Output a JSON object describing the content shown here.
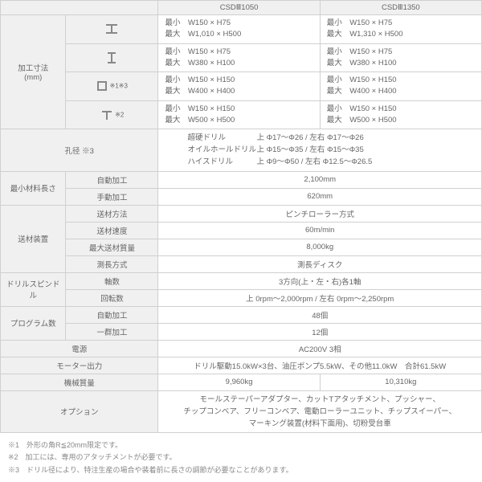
{
  "colors": {
    "border": "#d0d0d0",
    "headbg": "#f0f0f0",
    "text": "#666",
    "note": "#888"
  },
  "header": {
    "model_a": "CSDⅢ1050",
    "model_b": "CSDⅢ1350"
  },
  "dims": {
    "label": "加工寸法\n(mm)",
    "rows": [
      {
        "icon": "H",
        "a_min": "W150 × H75",
        "a_max": "W1,010 × H500",
        "b_min": "W150 × H75",
        "b_max": "W1,310 × H500"
      },
      {
        "icon": "I",
        "a_min": "W150 × H75",
        "a_max": "W380 × H100",
        "b_min": "W150 × H75",
        "b_max": "W380 × H100"
      },
      {
        "icon": "BOX",
        "note": "※1※3",
        "a_min": "W150 × H150",
        "a_max": "W400 × H400",
        "b_min": "W150 × H150",
        "b_max": "W400 × H400"
      },
      {
        "icon": "T",
        "note": "※2",
        "a_min": "W150 × H150",
        "a_max": "W500 × H500",
        "b_min": "W150 × H150",
        "b_max": "W500 × H500"
      }
    ],
    "minlabel": "最小",
    "maxlabel": "最大"
  },
  "hole": {
    "label": "孔径 ※3",
    "lines": [
      {
        "sub": "超硬ドリル",
        "val": "上 Φ17～Φ26 / 左右 Φ17～Φ26"
      },
      {
        "sub": "オイルホールドリル",
        "val": "上 Φ15～Φ35 / 左右 Φ15～Φ35"
      },
      {
        "sub": "ハイスドリル",
        "val": "上 Φ9～Φ50 / 左右 Φ12.5～Φ26.5"
      }
    ]
  },
  "rows": [
    {
      "group": "最小材料長さ",
      "sub": "自動加工",
      "val": "2,100mm"
    },
    {
      "group": "",
      "sub": "手動加工",
      "val": "620mm"
    },
    {
      "group": "送材装置",
      "sub": "送材方法",
      "val": "ピンチローラー方式"
    },
    {
      "group": "",
      "sub": "送材速度",
      "val": "60m/min"
    },
    {
      "group": "",
      "sub": "最大送材質量",
      "val": "8,000kg"
    },
    {
      "group": "",
      "sub": "測長方式",
      "val": "測長ディスク"
    },
    {
      "group": "ドリルスピンドル",
      "sub": "軸数",
      "val": "3方向(上・左・右)各1軸"
    },
    {
      "group": "",
      "sub": "回転数",
      "val": "上 0rpm～2,000rpm / 左右 0rpm～2,250rpm"
    },
    {
      "group": "プログラム数",
      "sub": "自動加工",
      "val": "48個"
    },
    {
      "group": "",
      "sub": "一群加工",
      "val": "12個"
    }
  ],
  "power": {
    "label": "電源",
    "val": "AC200V 3相"
  },
  "motor": {
    "label": "モーター出力",
    "val": "ドリル駆動15.0kW×3台、油圧ポンプ5.5kW、その他11.0kW　合計61.5kW"
  },
  "mass": {
    "label": "機械質量",
    "a": "9,960kg",
    "b": "10,310kg"
  },
  "option": {
    "label": "オプション",
    "val": "モールステーパーアダプター、カットTアタッチメント、プッシャー、\nチップコンベア、フリーコンベア、電動ローラーユニット、チップスイーパー、\nマーキング装置(材料下面用)、切粉受台車"
  },
  "notes": [
    "※1　外形の角R≦20mm限定です。",
    "※2　加工には、専用のアタッチメントが必要です。",
    "※3　ドリル径により、特注生産の場合や装着前に長さの調節が必要なことがあります。"
  ]
}
